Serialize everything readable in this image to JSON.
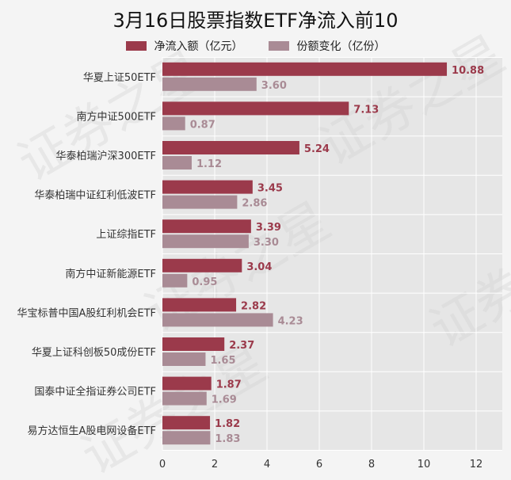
{
  "chart_data": {
    "type": "bar",
    "orientation": "horizontal",
    "title": "3月16日股票指数ETF净流入前10",
    "categories": [
      "华夏上证50ETF",
      "南方中证500ETF",
      "华泰柏瑞沪深300ETF",
      "华泰柏瑞中证红利低波ETF",
      "上证综指ETF",
      "南方中证新能源ETF",
      "华宝标普中国A股红利机会ETF",
      "华夏上证科创板50成份ETF",
      "国泰中证全指证券公司ETF",
      "易方达恒生A股电网设备ETF"
    ],
    "series": [
      {
        "name": "净流入额（亿元）",
        "color": "#9b3a4b",
        "values": [
          10.88,
          7.13,
          5.24,
          3.45,
          3.39,
          3.04,
          2.82,
          2.37,
          1.87,
          1.82
        ],
        "labels": [
          "10.88",
          "7.13",
          "5.24",
          "3.45",
          "3.39",
          "3.04",
          "2.82",
          "2.37",
          "1.87",
          "1.82"
        ]
      },
      {
        "name": "份额变化（亿份）",
        "color": "#a98b95",
        "values": [
          3.6,
          0.87,
          1.12,
          2.86,
          3.3,
          0.95,
          4.23,
          1.65,
          1.69,
          1.83
        ],
        "labels": [
          "3.60",
          "0.87",
          "1.12",
          "2.86",
          "3.30",
          "0.95",
          "4.23",
          "1.65",
          "1.69",
          "1.83"
        ]
      }
    ],
    "xlim": [
      0,
      13
    ],
    "xticks": [
      0,
      2,
      4,
      6,
      8,
      10,
      12
    ],
    "xtick_labels": [
      "0",
      "2",
      "4",
      "6",
      "8",
      "10",
      "12"
    ],
    "grid": true,
    "legend_position": "top-center"
  },
  "watermark": "证券之星"
}
